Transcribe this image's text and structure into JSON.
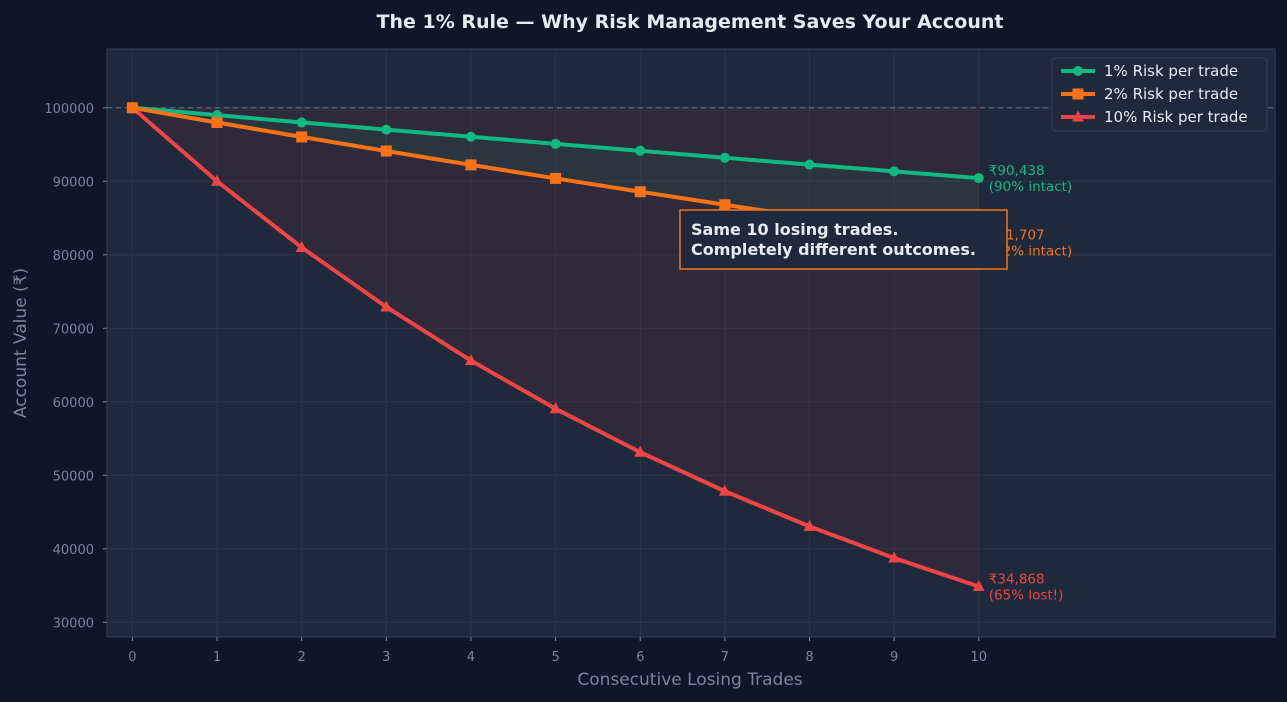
{
  "chart_data": {
    "type": "line",
    "title": "The 1% Rule — Why Risk Management Saves Your Account",
    "xlabel": "Consecutive Losing Trades",
    "ylabel": "Account Value (₹)",
    "x": [
      0,
      1,
      2,
      3,
      4,
      5,
      6,
      7,
      8,
      9,
      10
    ],
    "xlim": [
      -0.3,
      13.5
    ],
    "ylim": [
      28000,
      108000
    ],
    "yticks": [
      30000,
      40000,
      50000,
      60000,
      70000,
      80000,
      90000,
      100000
    ],
    "baseline": 100000,
    "grid": true,
    "legend_position": "top-right",
    "series": [
      {
        "name": "1% Risk per trade",
        "color": "#10b981",
        "marker": "circle",
        "values": [
          100000,
          99000,
          98010,
          97030,
          96060,
          95099,
          94148,
          93207,
          92274,
          91352,
          90438
        ],
        "end_label": [
          "₹90,438",
          "(90% intact)"
        ]
      },
      {
        "name": "2% Risk per trade",
        "color": "#f97316",
        "marker": "square",
        "values": [
          100000,
          98000,
          96040,
          94119,
          92237,
          90392,
          88584,
          86813,
          85076,
          83375,
          81707
        ],
        "end_label": [
          "₹81,707",
          "(82% intact)"
        ]
      },
      {
        "name": "10% Risk per trade",
        "color": "#ef4444",
        "marker": "triangle",
        "values": [
          100000,
          90000,
          81000,
          72900,
          65610,
          59049,
          53144,
          47830,
          43047,
          38742,
          34868
        ],
        "end_label": [
          "₹34,868",
          "(65% lost!)"
        ]
      }
    ],
    "annotation": {
      "lines": [
        "Same 10 losing trades.",
        "Completely different outcomes."
      ],
      "border_color": "#f97316"
    }
  }
}
